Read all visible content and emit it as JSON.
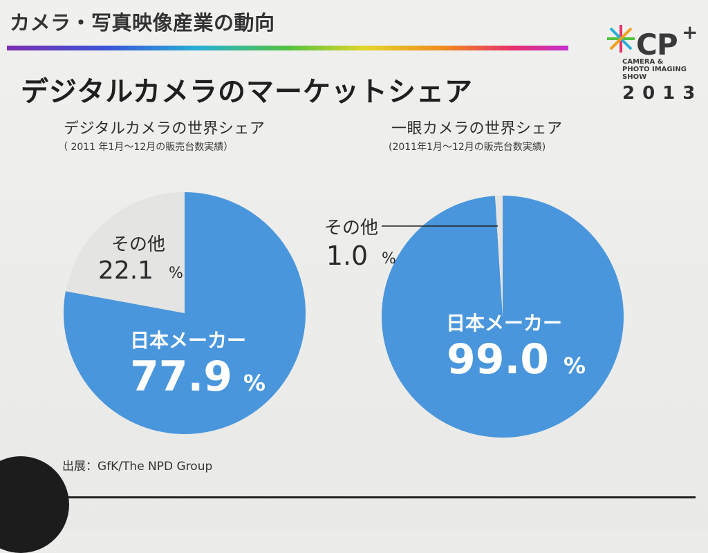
{
  "header": {
    "title": "カメラ・写真映像産業の動向"
  },
  "logo": {
    "mark": "CP",
    "plus": "+",
    "subtitle": "CAMERA &\nPHOTO IMAGING\nSHOW",
    "year": "2013"
  },
  "title": "デジタルカメラのマーケットシェア",
  "source": "出展：GfK/The NPD Group",
  "colors": {
    "japan": "#4996dc",
    "other": "#e4e4e2",
    "text_on_blue": "#ffffff"
  },
  "chart_data": [
    {
      "type": "pie",
      "title": "デジタルカメラの世界シェア",
      "subtitle": "（ 2011 年1月〜12月の販売台数実績）",
      "slices": [
        {
          "label": "日本メーカー",
          "value": 77.9,
          "display": "77.9",
          "unit": "%"
        },
        {
          "label": "その他",
          "value": 22.1,
          "display": "22.1",
          "unit": "%"
        }
      ]
    },
    {
      "type": "pie",
      "title": "一眼カメラの世界シェア",
      "subtitle": "(2011年1月〜12月の販売台数実績)",
      "slices": [
        {
          "label": "日本メーカー",
          "value": 99.0,
          "display": "99.0",
          "unit": "%"
        },
        {
          "label": "その他",
          "value": 1.0,
          "display": "1.0",
          "unit": "%"
        }
      ]
    }
  ]
}
